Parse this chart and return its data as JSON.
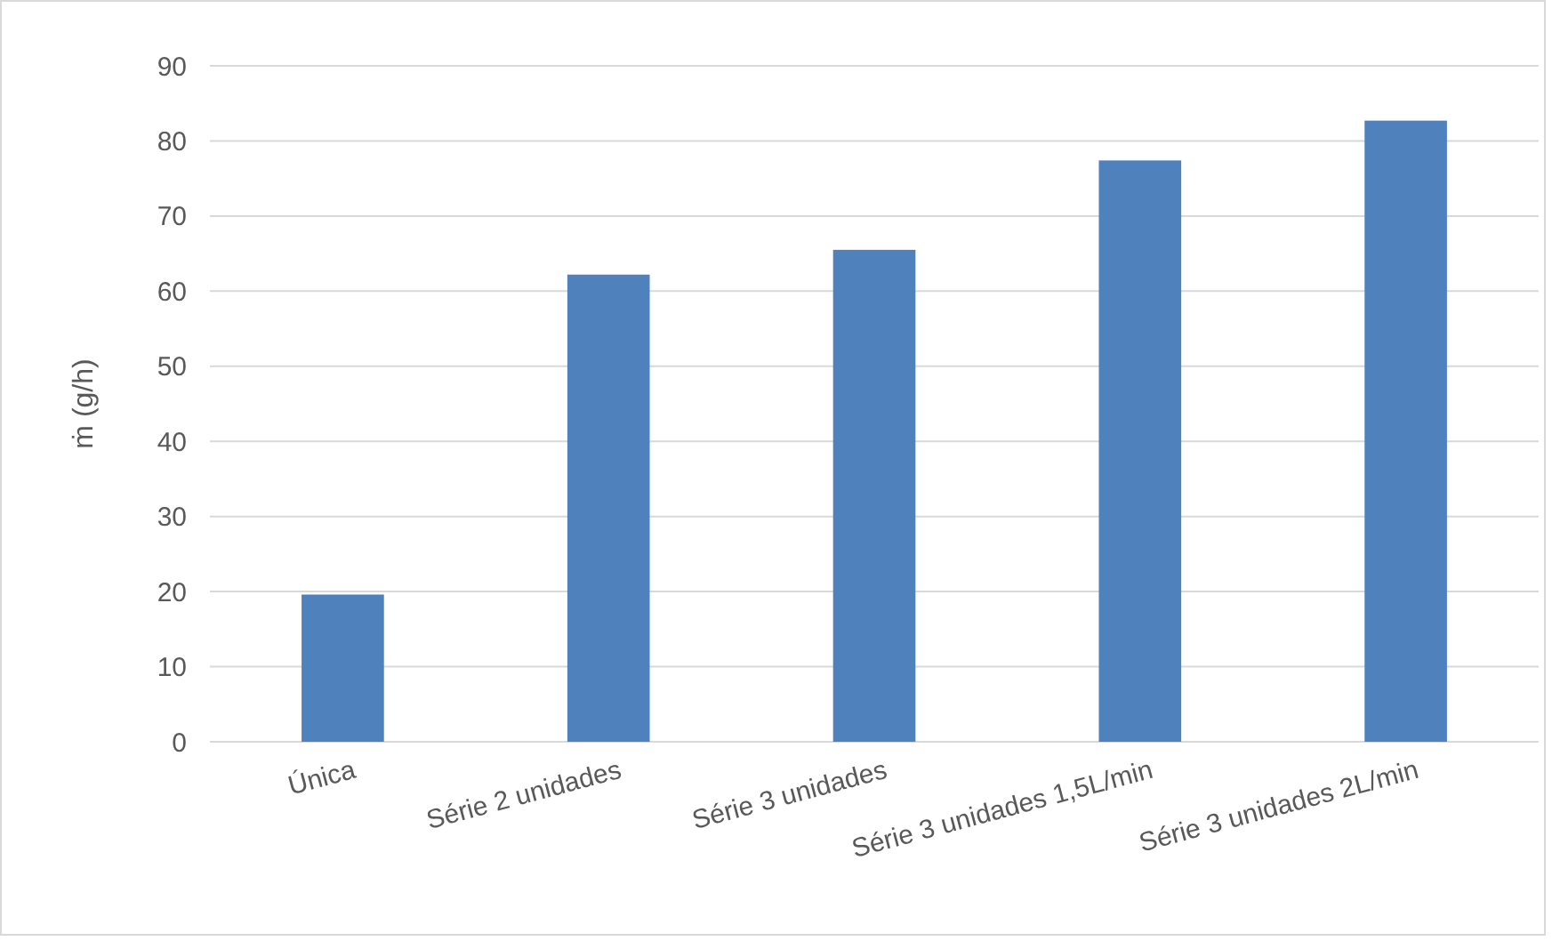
{
  "chart_data": {
    "type": "bar",
    "ylabel": "ṁ (g/h)",
    "categories": [
      "Única",
      "Série 2 unidades",
      "Série 3 unidades",
      "Série 3 unidades 1,5L/min",
      "Série 3 unidades 2L/min"
    ],
    "values": [
      19.6,
      62.2,
      65.5,
      77.4,
      82.7
    ],
    "color": "#4f81bd",
    "ylim": [
      0,
      90
    ],
    "yticks": [
      0,
      10,
      20,
      30,
      40,
      50,
      60,
      70,
      80,
      90
    ],
    "grid": "y"
  }
}
